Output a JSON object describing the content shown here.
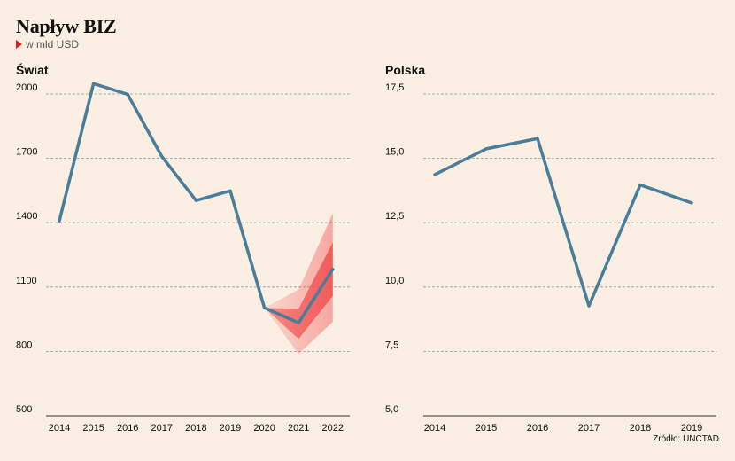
{
  "header": {
    "title": "Napływ BIZ",
    "subtitle": "w mld USD"
  },
  "source": "Źródło: UNCTAD",
  "colors": {
    "background": "#fbefe3",
    "line": "#4a7d9a",
    "forecast": "#f05050",
    "grid": "#9a9a9a"
  },
  "chart_data": [
    {
      "type": "line",
      "title": "Świat",
      "categories": [
        "2014",
        "2015",
        "2016",
        "2017",
        "2018",
        "2019",
        "2020",
        "2021",
        "2022"
      ],
      "series": [
        {
          "values": [
            1400,
            2040,
            1990,
            1700,
            1495,
            1540,
            995,
            925,
            1175
          ]
        }
      ],
      "forecast_band": {
        "x": [
          "2020",
          "2021",
          "2022"
        ],
        "low": [
          995,
          780,
          930
        ],
        "high": [
          995,
          1080,
          1435
        ],
        "inner_low": [
          995,
          850,
          1050
        ],
        "inner_high": [
          995,
          990,
          1300
        ]
      },
      "yticks": [
        "2000",
        "1700",
        "1400",
        "1100",
        "800",
        "500"
      ],
      "ylim": [
        500,
        2150
      ],
      "grid": true
    },
    {
      "type": "line",
      "title": "Polska",
      "categories": [
        "2014",
        "2015",
        "2016",
        "2017",
        "2018",
        "2019"
      ],
      "series": [
        {
          "values": [
            14.3,
            15.3,
            15.7,
            9.2,
            13.9,
            13.2
          ]
        }
      ],
      "yticks": [
        "17,5",
        "15,0",
        "12,5",
        "10,0",
        "7,5",
        "5,0"
      ],
      "ylim": [
        5.0,
        17.5
      ],
      "grid": true
    }
  ]
}
